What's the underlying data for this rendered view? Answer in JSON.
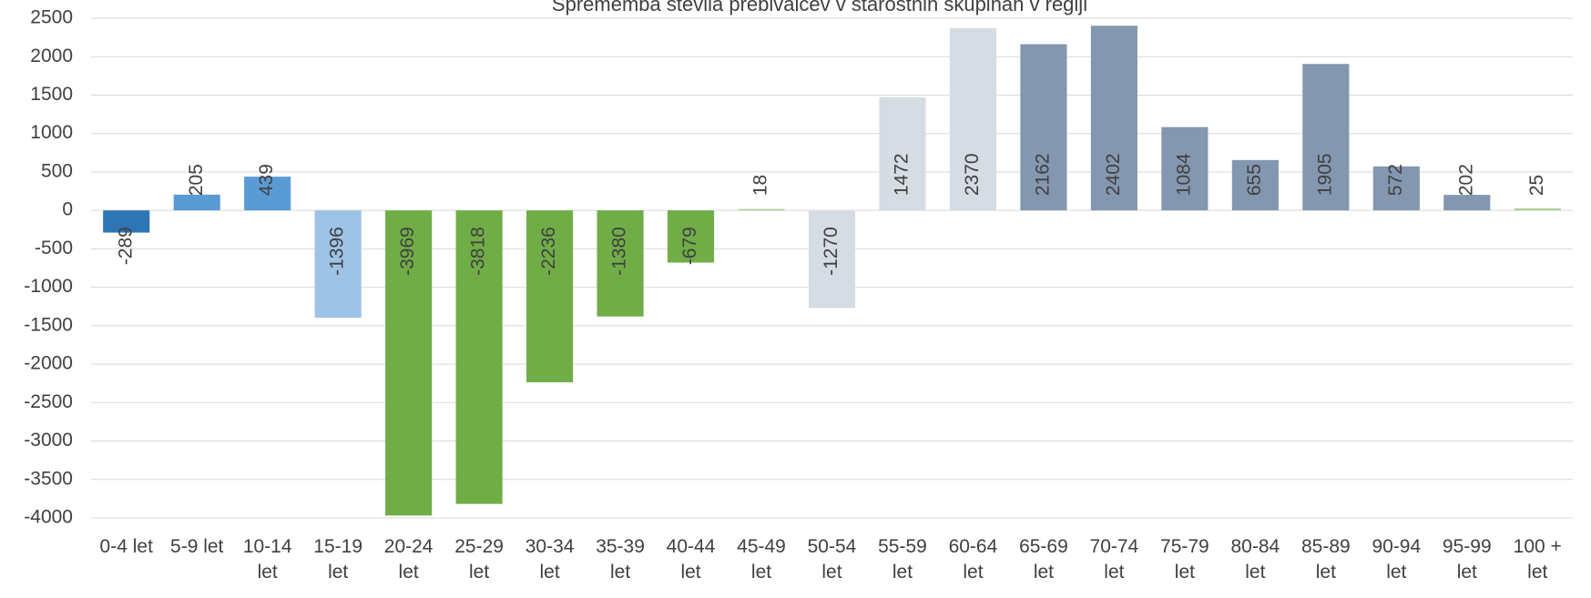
{
  "chart_data": {
    "type": "bar",
    "title": "Sprememba števila prebivalcev v starostnih skupinah v regiji",
    "categories": [
      "0-4 let",
      "5-9 let",
      "10-14 let",
      "15-19 let",
      "20-24 let",
      "25-29 let",
      "30-34 let",
      "35-39 let",
      "40-44 let",
      "45-49 let",
      "50-54 let",
      "55-59 let",
      "60-64 let",
      "65-69 let",
      "70-74 let",
      "75-79 let",
      "80-84 let",
      "85-89 let",
      "90-94 let",
      "95-99 let",
      "100 + let"
    ],
    "values": [
      -289,
      205,
      439,
      -1396,
      -3969,
      -3818,
      -2236,
      -1380,
      -679,
      18,
      -1270,
      1472,
      2370,
      2162,
      2402,
      1084,
      655,
      1905,
      572,
      202,
      25
    ],
    "colors": [
      "#2e75b6",
      "#5b9bd5",
      "#5b9bd5",
      "#9dc3e6",
      "#70ad47",
      "#70ad47",
      "#70ad47",
      "#70ad47",
      "#70ad47",
      "#a9d18e",
      "#d6dce4",
      "#d6dce4",
      "#d6dce4",
      "#8497b0",
      "#8497b0",
      "#8497b0",
      "#8497b0",
      "#8497b0",
      "#8497b0",
      "#8497b0",
      "#a9d18e"
    ],
    "ylim": [
      -4000,
      2500
    ],
    "yticks": [
      -4000,
      -3500,
      -3000,
      -2500,
      -2000,
      -1500,
      -1000,
      -500,
      0,
      500,
      1000,
      1500,
      2000,
      2500
    ],
    "grid": true
  }
}
